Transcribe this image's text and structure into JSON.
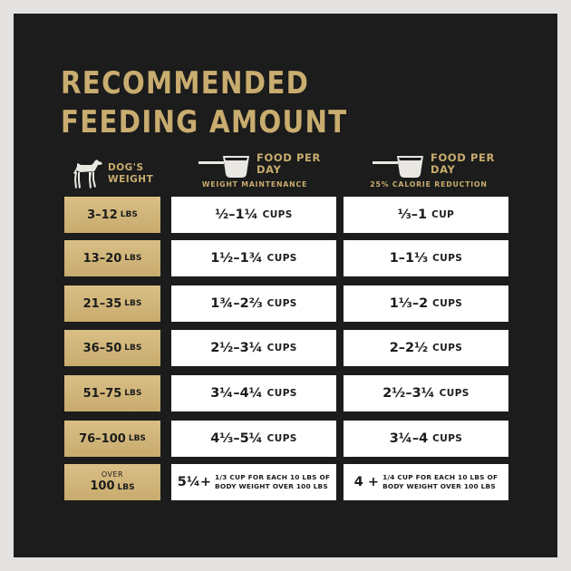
{
  "title": {
    "line1": "RECOMMENDED",
    "line2": "FEEDING AMOUNT"
  },
  "header": {
    "dog_weight": "DOG'S WEIGHT",
    "food_per_day": "FOOD PER DAY",
    "col1_sub": "WEIGHT MAINTENANCE",
    "col2_sub": "25% CALORIE REDUCTION"
  },
  "rows": [
    {
      "weight": "3–12",
      "unit": "LBS",
      "maint": "½–1¼",
      "maint_unit": "CUPS",
      "reduced": "⅓–1",
      "reduced_unit": "CUP"
    },
    {
      "weight": "13–20",
      "unit": "LBS",
      "maint": "1½–1¾",
      "maint_unit": "CUPS",
      "reduced": "1–1⅓",
      "reduced_unit": "CUPS"
    },
    {
      "weight": "21–35",
      "unit": "LBS",
      "maint": "1¾–2⅔",
      "maint_unit": "CUPS",
      "reduced": "1⅓–2",
      "reduced_unit": "CUPS"
    },
    {
      "weight": "36–50",
      "unit": "LBS",
      "maint": "2½–3¼",
      "maint_unit": "CUPS",
      "reduced": "2–2½",
      "reduced_unit": "CUPS"
    },
    {
      "weight": "51–75",
      "unit": "LBS",
      "maint": "3¼–4¼",
      "maint_unit": "CUPS",
      "reduced": "2½–3¼",
      "reduced_unit": "CUPS"
    },
    {
      "weight": "76–100",
      "unit": "LBS",
      "maint": "4⅓–5¼",
      "maint_unit": "CUPS",
      "reduced": "3¼–4",
      "reduced_unit": "CUPS"
    }
  ],
  "last_row": {
    "over": "OVER",
    "weight": "100",
    "unit": "LBS",
    "maint_base": "5¼+",
    "maint_note_1": "1/3 CUP FOR EACH 10 LBS OF",
    "maint_note_2": "BODY WEIGHT OVER 100 LBS",
    "reduced_base": "4 +",
    "reduced_note_1": "1/4 CUP FOR EACH 10 LBS OF",
    "reduced_note_2": "BODY WEIGHT OVER 100 LBS"
  },
  "colors": {
    "background": "#1b1c1b",
    "gold": "#c9ac6f",
    "cell": "#ffffff",
    "outer": "#e4e1e1"
  },
  "icons": {
    "dog": "dog-icon",
    "scoop": "measuring-scoop-icon"
  }
}
